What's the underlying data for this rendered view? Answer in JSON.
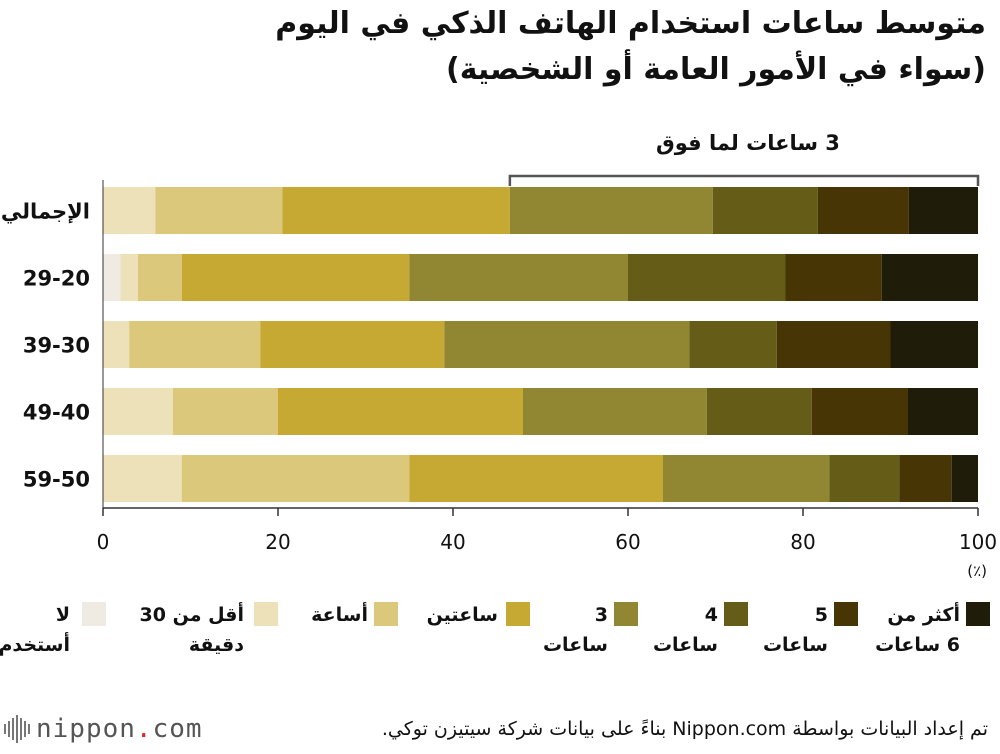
{
  "titles": {
    "line1": "متوسط ساعات استخدام الهاتف الذكي في اليوم",
    "line2": "(سواء في الأمور العامة أو الشخصية)"
  },
  "bracket_label": "3 ساعات لما فوق",
  "unit_label": "(٪)",
  "colors": {
    "not_used": "#efebe2",
    "less_30": "#ece1b8",
    "one_hour": "#dcc87a",
    "two_hours": "#c6a932",
    "three_hours": "#918632",
    "four_hours": "#655d17",
    "five_hours": "#483505",
    "six_plus": "#1f1c09"
  },
  "chart_data": {
    "type": "bar",
    "orientation": "horizontal",
    "stacked": true,
    "categories": [
      "الإجمالي",
      "29-20",
      "39-30",
      "49-40",
      "59-50"
    ],
    "xlim": [
      0,
      100
    ],
    "xticks": [
      "0",
      "20",
      "40",
      "60",
      "80",
      "100"
    ],
    "series": [
      {
        "name": "لا أستخدم",
        "values": [
          0,
          2,
          0,
          0,
          0
        ]
      },
      {
        "name": "أقل من 30 دقيقة",
        "values": [
          6,
          2,
          3,
          8,
          9
        ]
      },
      {
        "name": "أساعة",
        "values": [
          14.5,
          5,
          15,
          12,
          26
        ]
      },
      {
        "name": "ساعتين",
        "values": [
          26,
          26,
          21,
          28,
          29
        ]
      },
      {
        "name": "3 ساعات",
        "values": [
          23.2,
          25,
          28,
          21,
          19
        ]
      },
      {
        "name": "4 ساعات",
        "values": [
          12,
          18,
          10,
          12,
          8
        ]
      },
      {
        "name": "5 ساعات",
        "values": [
          10.4,
          11,
          13,
          11,
          6
        ]
      },
      {
        "name": "أكثر من 6 ساعات",
        "values": [
          7.9,
          11,
          10,
          8,
          3
        ]
      }
    ]
  },
  "legend": [
    {
      "label": "لا\nأستخدم",
      "color_key": "not_used"
    },
    {
      "label": "أقل من 30\nدقيقة",
      "color_key": "less_30"
    },
    {
      "label": "أساعة",
      "color_key": "one_hour"
    },
    {
      "label": "ساعتين",
      "color_key": "two_hours"
    },
    {
      "label": "3\nساعات",
      "color_key": "three_hours"
    },
    {
      "label": "4\nساعات",
      "color_key": "four_hours"
    },
    {
      "label": "5\nساعات",
      "color_key": "five_hours"
    },
    {
      "label": "أكثر من\n6 ساعات",
      "color_key": "six_plus"
    }
  ],
  "source": "تم إعداد البيانات بواسطة Nippon.com بناءً على بيانات شركة سيتيزن توكي.",
  "logo": {
    "main": "nippon",
    "dot": ".",
    "suffix": "com"
  }
}
